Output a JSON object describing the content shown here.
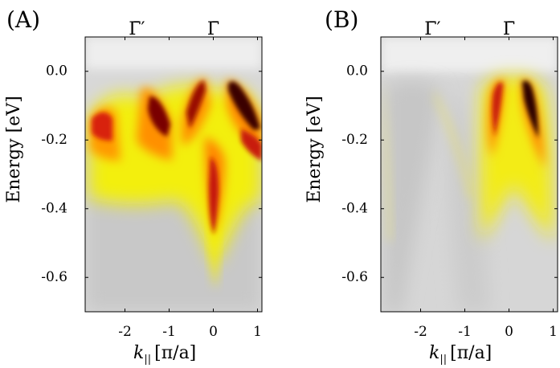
{
  "chart_data": [
    {
      "type": "heatmap",
      "panel_label": "(A)",
      "xlabel": "k_{||} [π/a]",
      "xlabel_main": "k",
      "xlabel_sub": "||",
      "xlabel_unit": "[π/a]",
      "ylabel": "Energy [eV]",
      "xlim": [
        -2.9,
        1.1
      ],
      "ylim": [
        -0.7,
        0.1
      ],
      "x_ticks": [
        -2,
        -1,
        0,
        1
      ],
      "x_tick_labels": [
        "-2",
        "-1",
        "0",
        "1"
      ],
      "y_ticks": [
        0.0,
        -0.2,
        -0.4,
        -0.6
      ],
      "y_tick_labels": [
        "0.0",
        "-0.2",
        "-0.4",
        "-0.6"
      ],
      "symmetry_points": [
        {
          "label": "Γ̄′",
          "k": -1.73
        },
        {
          "label": "Γ̄",
          "k": 0.0
        }
      ],
      "colormap": [
        "#d6d6d6",
        "#f5f10a",
        "#ffd800",
        "#ff8c00",
        "#d41a0a",
        "#2a0000"
      ],
      "intensity_features": [
        {
          "name": "band-apex-1",
          "k": 0.35,
          "E": -0.03,
          "intensity": 1.0
        },
        {
          "name": "band-apex-2",
          "k": -0.4,
          "E": -0.03,
          "intensity": 0.95
        },
        {
          "name": "band-apex-3",
          "k": -1.3,
          "E": -0.1,
          "intensity": 0.9
        },
        {
          "name": "band-apex-4",
          "k": -2.55,
          "E": -0.13,
          "intensity": 0.8
        },
        {
          "name": "gamma-bottom",
          "k": 0.0,
          "E": -0.45,
          "intensity": 0.75
        }
      ]
    },
    {
      "type": "heatmap",
      "panel_label": "(B)",
      "xlabel": "k_{||} [π/a]",
      "xlabel_main": "k",
      "xlabel_sub": "||",
      "xlabel_unit": "[π/a]",
      "ylabel": "Energy [eV]",
      "xlim": [
        -2.9,
        1.1
      ],
      "ylim": [
        -0.7,
        0.1
      ],
      "x_ticks": [
        -2,
        -1,
        0,
        1
      ],
      "x_tick_labels": [
        "-2",
        "-1",
        "0",
        "1"
      ],
      "y_ticks": [
        0.0,
        -0.2,
        -0.4,
        -0.6
      ],
      "y_tick_labels": [
        "0.0",
        "-0.2",
        "-0.4",
        "-0.6"
      ],
      "symmetry_points": [
        {
          "label": "Γ̄′",
          "k": -1.73
        },
        {
          "label": "Γ̄",
          "k": 0.0
        }
      ],
      "colormap": [
        "#d6d6d6",
        "#f5f10a",
        "#ffd800",
        "#ff8c00",
        "#d41a0a",
        "#2a0000"
      ],
      "intensity_features": [
        {
          "name": "branch-left",
          "k": -0.2,
          "E": -0.12,
          "intensity": 0.85
        },
        {
          "name": "branch-right",
          "k": 0.35,
          "E": -0.12,
          "intensity": 1.0
        }
      ]
    }
  ]
}
